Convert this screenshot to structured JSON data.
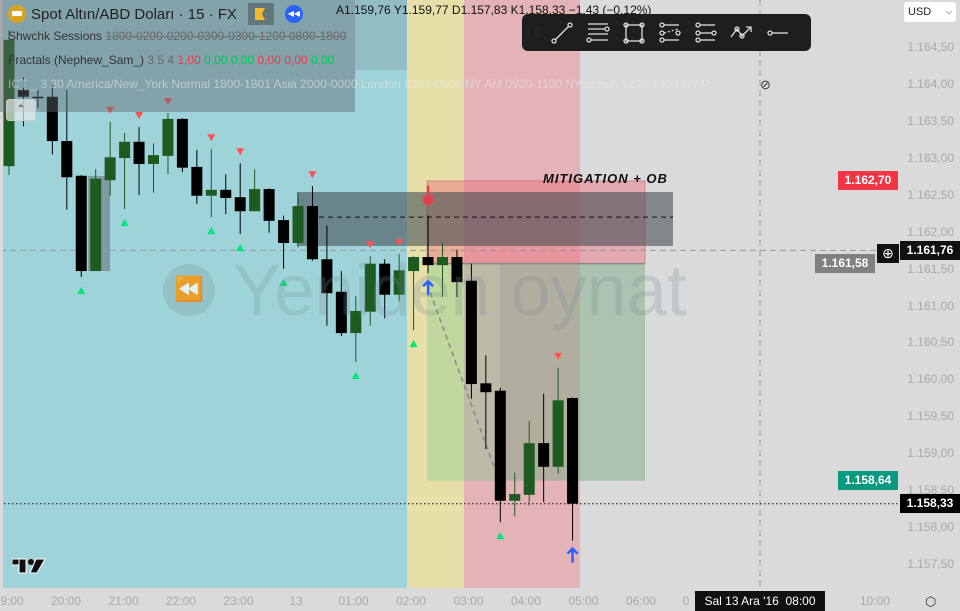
{
  "header": {
    "symbol_title": "Spot Altın/ABD Doları · 15 · FX",
    "ohlc": {
      "open": "A1.159,76",
      "high": "Y1.159,77",
      "low": "D1.157,83",
      "close": "K1.158,33",
      "change": "−1,43 (−0,12%)"
    },
    "indicators": {
      "sessions_name": "Shwchk Sessions",
      "sessions_values": "1800-0200-0200-0300-0300-1200 0800-1800",
      "fractals_name": "Fractals (Nephew_Sam_)",
      "fractals_params": "3 5 4",
      "fractals_values": [
        {
          "text": "1,00",
          "color": "#f23645"
        },
        {
          "text": "0,00",
          "color": "#00c853"
        },
        {
          "text": "0,00",
          "color": "#00c853"
        },
        {
          "text": "0,00",
          "color": "#f23645"
        },
        {
          "text": "0,00",
          "color": "#f23645"
        },
        {
          "text": "0,00",
          "color": "#00c853"
        }
      ],
      "ict_line": "ICT _  3 30 America/New_York Normal 1800-1801 Asia 2000-0000 London 0200-0500 NY AM 0930-1100 NY Lunch 1200-1300 NY P."
    },
    "collapse_icon": "chevron-up-icon",
    "hide_icon": "eye-off-icon"
  },
  "drawing_toolbar": {
    "tools": [
      "trend-line-icon",
      "parallel-channel-icon",
      "rectangle-icon",
      "regression-trend-icon",
      "flat-top-bottom-icon",
      "path-icon",
      "horizontal-ray-icon"
    ]
  },
  "currency_select": "USD",
  "annotation": "MITIGATION + OB",
  "watermark": "Yeniden oynat",
  "price_axis": {
    "ticks": [
      "1.164,50",
      "1.164,00",
      "1.163,50",
      "1.163,00",
      "1.162,50",
      "1.162,00",
      "1.161,50",
      "1.161,00",
      "1.160,50",
      "1.160,00",
      "1.159,50",
      "1.159,00",
      "1.158,50",
      "1.158,00",
      "1.157,50"
    ],
    "labels": [
      {
        "text": "1.162,70",
        "value": 1162.7,
        "color": "#f23645"
      },
      {
        "text": "1.161,58",
        "value": 1161.58,
        "color": "#808080"
      },
      {
        "text": "1.161,76",
        "value": 1161.76,
        "color": "#111111"
      },
      {
        "text": "1.158,64",
        "value": 1158.64,
        "color": "#089981"
      },
      {
        "text": "1.158,33",
        "value": 1158.33,
        "color": "#000000"
      }
    ]
  },
  "time_axis": {
    "labels": [
      "9:00",
      "20:00",
      "21:00",
      "22:00",
      "23:00",
      "13",
      "01:00",
      "02:00",
      "03:00",
      "04:00",
      "05:00",
      "06:00",
      "0",
      "10:00"
    ],
    "crosshair_label": "Sal 13 Ara '16  08:00"
  },
  "chart_data": {
    "type": "candlestick",
    "interval": "15",
    "colors": {
      "up": "#1e5b20",
      "down": "#000000",
      "fractal_up": "#00e676",
      "fractal_down": "#ff5252",
      "asia": "#9fd3da",
      "london": "#e6e0a8",
      "ny": "#e3b3b7"
    },
    "candles": [
      [
        1162.9,
        1164.74,
        1162.78,
        1164.61
      ],
      [
        1163.93,
        1164.1,
        1163.44,
        1163.84
      ],
      [
        1163.84,
        1163.93,
        1163.69,
        1163.82
      ],
      [
        1163.84,
        1164.0,
        1163.06,
        1163.24
      ],
      [
        1163.24,
        1163.93,
        1162.31,
        1162.75
      ],
      [
        1162.77,
        1162.78,
        1161.4,
        1161.48
      ],
      [
        1161.48,
        1162.86,
        1161.48,
        1162.73
      ],
      [
        1162.71,
        1163.5,
        1162.5,
        1163.02
      ],
      [
        1163.01,
        1163.35,
        1162.32,
        1163.23
      ],
      [
        1163.23,
        1163.43,
        1162.51,
        1162.93
      ],
      [
        1162.93,
        1163.21,
        1162.54,
        1163.05
      ],
      [
        1163.04,
        1163.62,
        1162.79,
        1163.54
      ],
      [
        1163.54,
        1163.55,
        1162.82,
        1162.88
      ],
      [
        1162.89,
        1163.12,
        1162.39,
        1162.5
      ],
      [
        1162.5,
        1163.13,
        1162.21,
        1162.58
      ],
      [
        1162.58,
        1162.79,
        1162.25,
        1162.47
      ],
      [
        1162.48,
        1162.94,
        1161.98,
        1162.29
      ],
      [
        1162.29,
        1162.86,
        1162.29,
        1162.59
      ],
      [
        1162.59,
        1162.6,
        1162.0,
        1162.16
      ],
      [
        1162.17,
        1162.23,
        1161.51,
        1161.86
      ],
      [
        1161.86,
        1162.54,
        1161.8,
        1162.36
      ],
      [
        1162.36,
        1162.63,
        1161.62,
        1161.64
      ],
      [
        1161.64,
        1162.1,
        1160.74,
        1161.18
      ],
      [
        1161.2,
        1161.48,
        1160.6,
        1160.64
      ],
      [
        1160.64,
        1161.14,
        1160.25,
        1160.94
      ],
      [
        1160.93,
        1161.68,
        1160.74,
        1161.58
      ],
      [
        1161.58,
        1161.64,
        1160.84,
        1161.16
      ],
      [
        1161.16,
        1161.71,
        1161.07,
        1161.49
      ],
      [
        1161.48,
        1161.68,
        1160.68,
        1161.67
      ],
      [
        1161.67,
        1162.23,
        1161.45,
        1161.56
      ],
      [
        1161.56,
        1161.87,
        1161.13,
        1161.67
      ],
      [
        1161.67,
        1161.77,
        1161.13,
        1161.33
      ],
      [
        1161.35,
        1161.58,
        1159.75,
        1159.95
      ],
      [
        1159.96,
        1160.34,
        1159.07,
        1159.84
      ],
      [
        1159.86,
        1159.9,
        1158.08,
        1158.37
      ],
      [
        1158.37,
        1158.75,
        1158.16,
        1158.46
      ],
      [
        1158.45,
        1159.45,
        1158.31,
        1159.15
      ],
      [
        1159.15,
        1159.82,
        1158.35,
        1158.83
      ],
      [
        1158.83,
        1160.17,
        1158.73,
        1159.73
      ],
      [
        1159.76,
        1159.77,
        1157.83,
        1158.33
      ]
    ],
    "fractals_down": [
      7,
      9,
      11,
      14,
      16,
      21,
      25,
      27,
      38
    ],
    "fractals_up": [
      5,
      8,
      14,
      16,
      19,
      24,
      28,
      34
    ],
    "signals": [
      {
        "candle": 29,
        "type": "sell"
      },
      {
        "candle": 29,
        "type": "buy"
      },
      {
        "candle": 39,
        "type": "buy"
      }
    ],
    "order_block": {
      "top": 1162.55,
      "bottom": 1161.82,
      "mid": 1162.21
    },
    "position": {
      "stop": 1162.7,
      "entry": 1161.58,
      "target": 1158.64
    },
    "current_price": 1158.33,
    "crosshair_price": 1161.76,
    "ylim": [
      1157.3,
      1164.8
    ]
  }
}
